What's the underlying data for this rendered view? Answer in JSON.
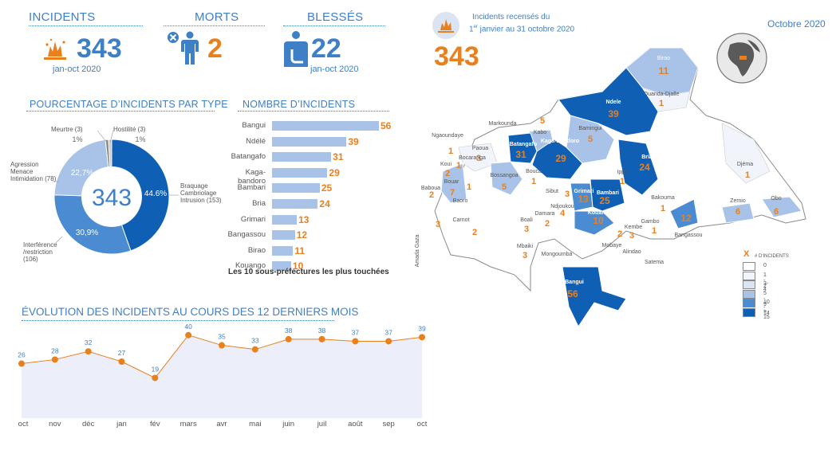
{
  "kpis": {
    "incidents": {
      "title": "INCIDENTS",
      "value": "343",
      "sub": "jan-oct 2020"
    },
    "deaths": {
      "title": "MORTS",
      "value": "2"
    },
    "injured": {
      "title": "BLESSÉS",
      "value": "22",
      "sub": "jan-oct 2020"
    }
  },
  "header": {
    "line1": "Incidents recensés du",
    "line2_sup": "er",
    "line2_pre": "1",
    "line2_post": " janvier au 31 octobre 2020",
    "total": "343",
    "month": "Octobre 2020"
  },
  "pie_section": {
    "title": "POURCENTAGE D’INCIDENTS PAR TYPE",
    "center": "343",
    "slices": [
      {
        "label": "Braquage\nCambriolage\nIntrusion (153)",
        "pct_label": "44.6%",
        "value": 153,
        "color": "#0f5fb5"
      },
      {
        "label": "Interférence\n/restriction\n(106)",
        "pct_label": "30,9%",
        "value": 106,
        "color": "#4b8bd1"
      },
      {
        "label": "Agression\nMenace\nIntimidation (78)",
        "pct_label": "22,7%",
        "value": 78,
        "color": "#a9c3e8"
      },
      {
        "label": "Meurtre (3)",
        "pct_label": "1%",
        "value": 3,
        "color": "#8a8a8a"
      },
      {
        "label": "Hostilité (3)",
        "pct_label": "1%",
        "value": 3,
        "color": "#c9c9c9"
      }
    ]
  },
  "bar_section": {
    "title": "NOMBRE D’INCIDENTS",
    "caption": "Les 10 sous-préfectures les plus touchées",
    "items": [
      {
        "name": "Bangui",
        "value": 56
      },
      {
        "name": "Ndélé",
        "value": 39
      },
      {
        "name": "Batangafo",
        "value": 31
      },
      {
        "name": "Kaga-bandoro",
        "value": 29
      },
      {
        "name": "Bambari",
        "value": 25
      },
      {
        "name": "Bria",
        "value": 24
      },
      {
        "name": "Grimari",
        "value": 13
      },
      {
        "name": "Bangassou",
        "value": 12
      },
      {
        "name": "Birao",
        "value": 11
      },
      {
        "name": "Kouango",
        "value": 10
      }
    ]
  },
  "line_section": {
    "title": "ÉVOLUTION DES INCIDENTS AU COURS DES 12 DERNIERS MOIS"
  },
  "chart_data": [
    {
      "type": "pie",
      "title": "POURCENTAGE D’INCIDENTS PAR TYPE",
      "categories": [
        "Braquage Cambriolage Intrusion",
        "Interférence /restriction",
        "Agression Menace Intimidation",
        "Meurtre",
        "Hostilité"
      ],
      "values": [
        153,
        106,
        78,
        3,
        3
      ]
    },
    {
      "type": "bar",
      "title": "NOMBRE D’INCIDENTS",
      "categories": [
        "Bangui",
        "Ndélé",
        "Batangafo",
        "Kaga-bandoro",
        "Bambari",
        "Bria",
        "Grimari",
        "Bangassou",
        "Birao",
        "Kouango"
      ],
      "values": [
        56,
        39,
        31,
        29,
        25,
        24,
        13,
        12,
        11,
        10
      ]
    },
    {
      "type": "area",
      "title": "ÉVOLUTION DES INCIDENTS AU COURS DES 12 DERNIERS MOIS",
      "categories": [
        "oct",
        "nov",
        "déc",
        "jan",
        "fév",
        "mars",
        "avr",
        "mai",
        "juin",
        "juil",
        "août",
        "sep",
        "oct"
      ],
      "values": [
        26,
        28,
        32,
        27,
        19,
        40,
        35,
        33,
        38,
        38,
        37,
        37,
        39
      ],
      "ylim": [
        0,
        45
      ]
    }
  ],
  "map": {
    "legend_title": "X",
    "legend_subtitle": "# D'INCIDENTS",
    "legend": [
      {
        "label": "0",
        "color": "#ffffff"
      },
      {
        "label": "1 - 2",
        "color": "#f1f4fa"
      },
      {
        "label": "3- 4",
        "color": "#dbe4f3"
      },
      {
        "label": "5 - 9",
        "color": "#a9c3e8"
      },
      {
        "label": "10 - 14",
        "color": "#4b8bd1"
      },
      {
        "label": "> 15",
        "color": "#0f5fb5"
      }
    ],
    "places": [
      {
        "name": "Birao",
        "value": "11"
      },
      {
        "name": "Ouanda-Djalle",
        "value": "1"
      },
      {
        "name": "Ndele",
        "value": "39"
      },
      {
        "name": "Markounda",
        "value": ""
      },
      {
        "name": "Kabo",
        "value": "5"
      },
      {
        "name": "Bamingui",
        "value": "5"
      },
      {
        "name": "Ngaoundaye",
        "value": "1"
      },
      {
        "name": "Paoua",
        "value": "3"
      },
      {
        "name": "Bocaranga",
        "value": "1"
      },
      {
        "name": "Batangafo",
        "value": "31"
      },
      {
        "name": "Kaga-Bandoro",
        "value": "29"
      },
      {
        "name": "Bria",
        "value": "24"
      },
      {
        "name": "Koui",
        "value": "2"
      },
      {
        "name": "Bossangoa",
        "value": "5"
      },
      {
        "name": "Bouca",
        "value": "1"
      },
      {
        "name": "Ippy",
        "value": "1"
      },
      {
        "name": "Djéma",
        "value": "1"
      },
      {
        "name": "Bouar",
        "value": "7"
      },
      {
        "name": "Baboua",
        "value": "2"
      },
      {
        "name": "Sibut",
        "value": "3"
      },
      {
        "name": "Grimari",
        "value": "13"
      },
      {
        "name": "Bambari",
        "value": "25"
      },
      {
        "name": "Bakouma",
        "value": "1"
      },
      {
        "name": "Baoro",
        "value": "1"
      },
      {
        "name": "Damara",
        "value": "2"
      },
      {
        "name": "Ndjoukou",
        "value": "4"
      },
      {
        "name": "Kouango",
        "value": "10"
      },
      {
        "name": "Zemio",
        "value": "6"
      },
      {
        "name": "Obo",
        "value": "6"
      },
      {
        "name": "Carnot",
        "value": "2"
      },
      {
        "name": "Boali",
        "value": "3"
      },
      {
        "name": "Kembe",
        "value": "3"
      },
      {
        "name": "Gambo",
        "value": "1"
      },
      {
        "name": "Bangassou",
        "value": "12"
      },
      {
        "name": "Mbaiki",
        "value": "3"
      },
      {
        "name": "Mongoumba",
        "value": ""
      },
      {
        "name": "Mobaye",
        "value": ""
      },
      {
        "name": "Alindao",
        "value": "2"
      },
      {
        "name": "Satema",
        "value": ""
      },
      {
        "name": "Bangui",
        "value": "56"
      },
      {
        "name": "Amada Gaza",
        "value": "3"
      }
    ]
  }
}
